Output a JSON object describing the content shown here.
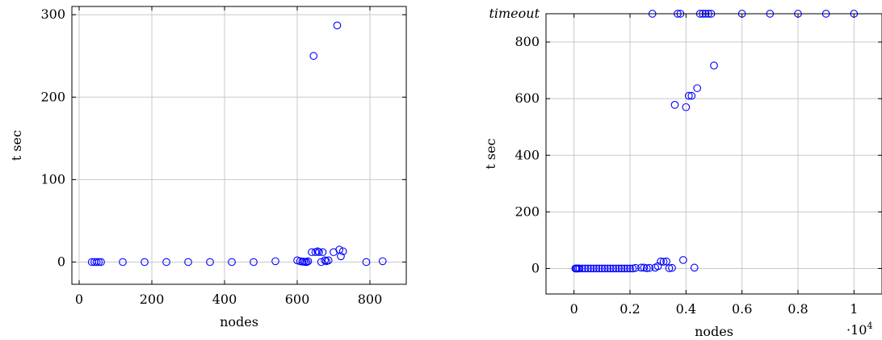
{
  "chart_data": [
    {
      "type": "scatter",
      "xlabel": "nodes",
      "ylabel": "t sec",
      "xlim": [
        -20,
        900
      ],
      "ylim": [
        -27,
        310
      ],
      "xticks": [
        0,
        200,
        400,
        600,
        800
      ],
      "xtick_labels": [
        "0",
        "200",
        "400",
        "600",
        "800"
      ],
      "yticks": [
        0,
        100,
        200,
        300
      ],
      "ytick_labels": [
        "0",
        "100",
        "200",
        "300"
      ],
      "grid": true,
      "marker_color": "#0000ff",
      "series": [
        {
          "marker": "circle",
          "x": [
            35,
            42,
            48,
            54,
            60,
            120,
            180,
            240,
            300,
            360,
            420,
            480,
            540,
            600,
            608,
            614,
            618,
            622,
            626,
            630,
            640,
            645,
            650,
            656,
            660,
            666,
            670,
            676,
            680,
            686,
            700,
            710,
            716,
            720,
            726,
            790,
            835
          ],
          "y": [
            0,
            0,
            0,
            0,
            0,
            0,
            0,
            0,
            0,
            0,
            0,
            0,
            1,
            2,
            1,
            0.5,
            0.5,
            0,
            0,
            1,
            12,
            250,
            12,
            13,
            12,
            0,
            12,
            2,
            1,
            2,
            12,
            287,
            15,
            7,
            13,
            0,
            1
          ]
        }
      ]
    },
    {
      "type": "scatter",
      "xlabel": "nodes",
      "ylabel": "t sec",
      "xlim": [
        -0.1,
        1.1
      ],
      "ylim": [
        -90,
        900
      ],
      "xticks": [
        0,
        0.2,
        0.4,
        0.6,
        0.8,
        1
      ],
      "xtick_labels": [
        "0",
        "0.2",
        "0.4",
        "0.6",
        "0.8",
        "1"
      ],
      "x_scale_label": "·10",
      "x_scale_exponent": "4",
      "yticks": [
        0,
        200,
        400,
        600,
        800
      ],
      "ytick_labels": [
        "0",
        "200",
        "400",
        "600",
        "800"
      ],
      "top_tick_label": "timeout",
      "grid": true,
      "marker_color": "#0000ff",
      "series": [
        {
          "marker": "circle",
          "x": [
            0.005,
            0.008,
            0.01,
            0.015,
            0.02,
            0.03,
            0.04,
            0.05,
            0.06,
            0.07,
            0.08,
            0.09,
            0.1,
            0.11,
            0.12,
            0.13,
            0.14,
            0.15,
            0.16,
            0.17,
            0.18,
            0.19,
            0.2,
            0.21,
            0.22,
            0.24,
            0.25,
            0.26,
            0.27,
            0.29,
            0.3,
            0.31,
            0.32,
            0.33,
            0.34,
            0.35,
            0.39,
            0.43,
            0.36,
            0.4,
            0.41,
            0.42,
            0.44,
            0.5,
            0.28,
            0.37,
            0.38,
            0.45,
            0.46,
            0.47,
            0.48,
            0.49,
            0.6,
            0.7,
            0.8,
            0.9,
            1.0
          ],
          "y": [
            0,
            0,
            0,
            0,
            0,
            0,
            0,
            0,
            0,
            0,
            0,
            0,
            0,
            0,
            0,
            0,
            0,
            0,
            0,
            0,
            0,
            0,
            0,
            0,
            2,
            3,
            3,
            1,
            2,
            3,
            8,
            25,
            24,
            25,
            1,
            2,
            30,
            3,
            578,
            570,
            610,
            610,
            637,
            717,
            900,
            900,
            900,
            900,
            900,
            900,
            900,
            900,
            900,
            900,
            900,
            900,
            900
          ]
        }
      ]
    }
  ]
}
